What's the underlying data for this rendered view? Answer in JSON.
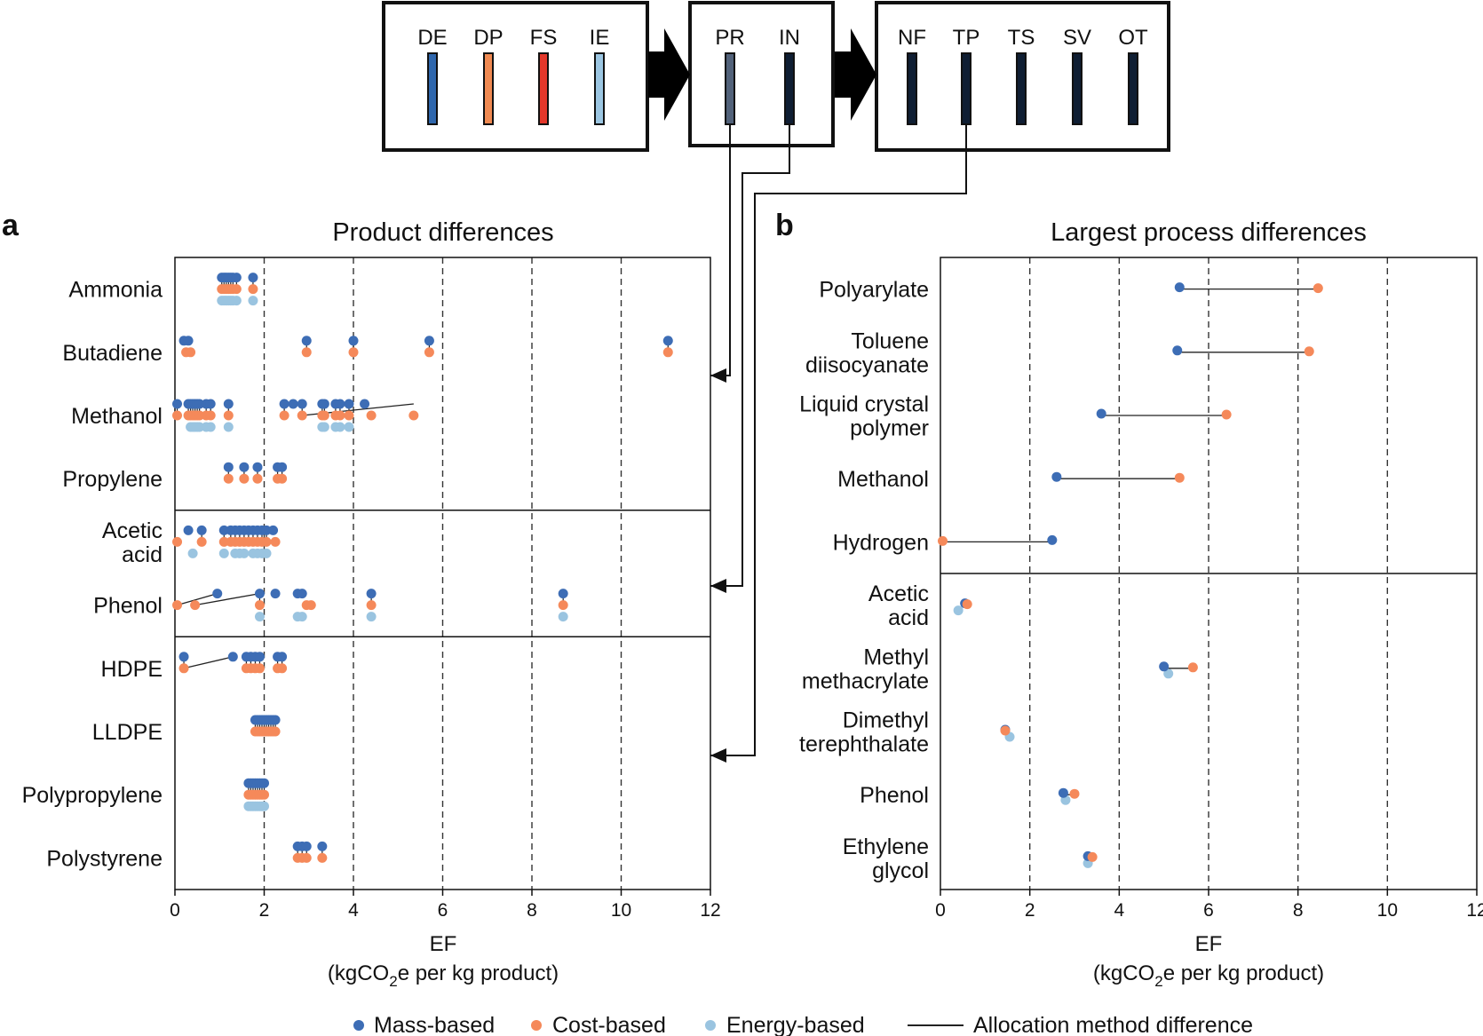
{
  "flow": {
    "box1": {
      "labels": [
        "DE",
        "DP",
        "FS",
        "IE"
      ],
      "colors": [
        "#2f67ad",
        "#f08a52",
        "#e3372a",
        "#9cc6e2"
      ]
    },
    "box2": {
      "labels": [
        "PR",
        "IN"
      ],
      "colors": [
        "#52627a",
        "#0f1e33"
      ]
    },
    "box3": {
      "labels": [
        "NF",
        "TP",
        "TS",
        "SV",
        "OT"
      ],
      "colors": [
        "#0f1e33",
        "#0f1e33",
        "#0f1e33",
        "#0f1e33",
        "#0f1e33"
      ]
    }
  },
  "colors": {
    "mass": "#3d6db5",
    "cost": "#f5895a",
    "energy": "#9ac4e0",
    "line": "#222222"
  },
  "legend": {
    "mass": "Mass-based",
    "cost": "Cost-based",
    "energy": "Energy-based",
    "line": "Allocation method difference"
  },
  "chart_data": [
    {
      "type": "scatter",
      "panel_label": "a",
      "title": "Product differences",
      "xlabel": "EF",
      "xlabel_units_pre": "(kgCO",
      "xlabel_units_sub": "2",
      "xlabel_units_post": "e per kg product)",
      "xlim": [
        0,
        12
      ],
      "xticks": [
        "0",
        "2",
        "4",
        "6",
        "8",
        "10",
        "12"
      ],
      "grid": "dashed vertical",
      "categories": [
        "Ammonia",
        "Butadiene",
        "Methanol",
        "Propylene",
        "Acetic acid",
        "Phenol",
        "HDPE",
        "LLDPE",
        "Polypropylene",
        "Polystyrene"
      ],
      "category_lines": [
        [
          "Ammonia"
        ],
        [
          "Butadiene"
        ],
        [
          "Methanol"
        ],
        [
          "Propylene"
        ],
        [
          "Acetic",
          "acid"
        ],
        [
          "Phenol"
        ],
        [
          "HDPE"
        ],
        [
          "LLDPE"
        ],
        [
          "Polypropylene"
        ],
        [
          "Polystyrene"
        ]
      ],
      "group_dividers_after": [
        3,
        5
      ],
      "series": [
        {
          "name": "Mass-based",
          "values": [
            [
              1.05,
              1.1,
              1.15,
              1.2,
              1.25,
              1.3,
              1.38,
              1.75
            ],
            [
              0.2,
              0.3,
              2.95,
              4.0,
              5.7,
              11.05
            ],
            [
              0.05,
              0.3,
              0.35,
              0.4,
              0.45,
              0.5,
              0.55,
              0.7,
              0.8,
              1.2,
              2.45,
              2.65,
              2.85,
              3.3,
              3.35,
              3.6,
              3.7,
              3.9,
              4.25
            ],
            [
              1.2,
              1.55,
              1.85,
              2.3,
              2.4
            ],
            [
              0.3,
              0.6,
              1.1,
              1.25,
              1.35,
              1.45,
              1.55,
              1.65,
              1.75,
              1.85,
              1.95,
              2.05,
              2.2
            ],
            [
              0.95,
              1.9,
              2.25,
              2.75,
              2.85,
              4.4,
              8.7
            ],
            [
              0.2,
              1.3,
              1.6,
              1.7,
              1.8,
              1.9,
              2.3,
              2.4
            ],
            [
              1.8,
              1.85,
              1.9,
              1.95,
              2.0,
              2.05,
              2.1,
              2.15,
              2.2,
              2.25
            ],
            [
              1.65,
              1.7,
              1.75,
              1.8,
              1.85,
              1.9,
              1.95,
              2.0
            ],
            [
              2.75,
              2.85,
              2.95,
              3.3
            ]
          ]
        },
        {
          "name": "Cost-based",
          "values": [
            [
              1.05,
              1.1,
              1.15,
              1.2,
              1.25,
              1.3,
              1.38,
              1.75
            ],
            [
              0.25,
              0.35,
              2.95,
              4.0,
              5.7,
              11.05
            ],
            [
              0.05,
              0.3,
              0.35,
              0.4,
              0.45,
              0.5,
              0.55,
              0.7,
              0.8,
              1.2,
              2.45,
              2.85,
              3.3,
              3.35,
              3.6,
              3.7,
              3.9,
              4.4,
              5.35
            ],
            [
              1.2,
              1.55,
              1.85,
              2.3,
              2.4
            ],
            [
              0.05,
              0.6,
              1.1,
              1.25,
              1.35,
              1.45,
              1.55,
              1.65,
              1.75,
              1.85,
              1.95,
              2.05,
              2.25
            ],
            [
              0.05,
              0.45,
              1.9,
              2.95,
              3.05,
              4.4,
              8.7
            ],
            [
              0.2,
              1.6,
              1.7,
              1.8,
              1.9,
              2.3,
              2.4
            ],
            [
              1.8,
              1.85,
              1.9,
              1.95,
              2.0,
              2.05,
              2.1,
              2.15,
              2.2,
              2.25
            ],
            [
              1.65,
              1.7,
              1.75,
              1.8,
              1.85,
              1.9,
              1.95,
              2.0
            ],
            [
              2.75,
              2.85,
              2.95,
              3.3
            ]
          ]
        },
        {
          "name": "Energy-based",
          "values": [
            [
              1.05,
              1.1,
              1.15,
              1.2,
              1.25,
              1.3,
              1.38,
              1.75
            ],
            [],
            [
              0.35,
              0.4,
              0.45,
              0.5,
              0.55,
              0.7,
              0.8,
              1.2,
              3.3,
              3.35,
              3.6,
              3.7,
              3.9
            ],
            [],
            [
              0.4,
              1.1,
              1.35,
              1.45,
              1.55,
              1.75,
              1.85,
              1.95,
              2.05
            ],
            [
              1.9,
              2.75,
              2.85,
              4.4,
              8.7
            ],
            [],
            [],
            [
              1.65,
              1.7,
              1.75,
              1.8,
              1.85,
              1.9,
              1.95,
              2.0
            ],
            []
          ]
        }
      ],
      "difference_lines": [
        {
          "category": "Methanol",
          "from": 2.85,
          "to": 5.35
        },
        {
          "category": "Phenol",
          "from": 0.05,
          "to": 0.95
        },
        {
          "category": "Phenol",
          "from": 0.45,
          "to": 1.9
        },
        {
          "category": "HDPE",
          "from": 0.2,
          "to": 1.3
        }
      ]
    },
    {
      "type": "scatter",
      "panel_label": "b",
      "title": "Largest process differences",
      "xlabel": "EF",
      "xlabel_units_pre": "(kgCO",
      "xlabel_units_sub": "2",
      "xlabel_units_post": "e per kg product)",
      "xlim": [
        0,
        12
      ],
      "xticks": [
        "0",
        "2",
        "4",
        "6",
        "8",
        "10",
        "12"
      ],
      "grid": "dashed vertical",
      "categories": [
        "Polyarylate",
        "Toluene diisocyanate",
        "Liquid crystal polymer",
        "Methanol",
        "Hydrogen",
        "Acetic acid",
        "Methyl methacrylate",
        "Dimethyl terephthalate",
        "Phenol",
        "Ethylene glycol"
      ],
      "category_lines": [
        [
          "Polyarylate"
        ],
        [
          "Toluene",
          "diisocyanate"
        ],
        [
          "Liquid crystal",
          "polymer"
        ],
        [
          "Methanol"
        ],
        [
          "Hydrogen"
        ],
        [
          "Acetic",
          "acid"
        ],
        [
          "Methyl",
          "methacrylate"
        ],
        [
          "Dimethyl",
          "terephthalate"
        ],
        [
          "Phenol"
        ],
        [
          "Ethylene",
          "glycol"
        ]
      ],
      "group_dividers_after": [
        4
      ],
      "series": [
        {
          "name": "Mass-based",
          "values": [
            5.35,
            5.3,
            3.6,
            2.6,
            2.5,
            0.55,
            5.0,
            1.45,
            2.75,
            3.3
          ]
        },
        {
          "name": "Cost-based",
          "values": [
            8.45,
            8.25,
            6.4,
            5.35,
            0.05,
            0.6,
            5.65,
            1.45,
            3.0,
            3.4
          ]
        },
        {
          "name": "Energy-based",
          "values": [
            null,
            null,
            null,
            null,
            null,
            0.4,
            5.1,
            1.55,
            2.8,
            3.3
          ]
        }
      ]
    }
  ]
}
